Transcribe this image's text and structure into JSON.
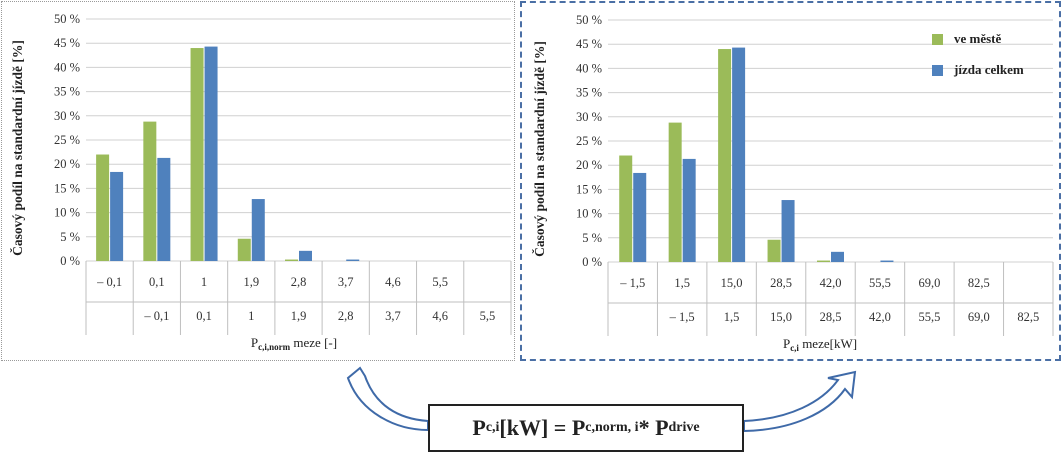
{
  "colors": {
    "green": "#9bbb59",
    "blue": "#4f81bd",
    "grid": "#d0d0d0"
  },
  "chart_data": [
    {
      "type": "bar",
      "ylabel": "Časový podíl na standardní jízdě [%]",
      "xlabel_main": "P",
      "xlabel_sub": "c,i,norm",
      "xlabel_rest": " meze [-]",
      "ylim": [
        0,
        50
      ],
      "yticks": [
        "0 %",
        "5 %",
        "10 %",
        "15 %",
        "20 %",
        "25 %",
        "30 %",
        "35 %",
        "40 %",
        "45 %",
        "50 %"
      ],
      "categories_upper": [
        "– 0,1",
        "0,1",
        "1",
        "1,9",
        "2,8",
        "3,7",
        "4,6",
        "5,5",
        ""
      ],
      "categories_lower": [
        "",
        "– 0,1",
        "0,1",
        "1",
        "1,9",
        "2,8",
        "3,7",
        "4,6",
        "5,5"
      ],
      "series": [
        {
          "name": "ve městě",
          "color": "#9bbb59",
          "values": [
            22,
            28.8,
            44,
            4.6,
            0.3,
            0,
            0,
            0,
            0
          ]
        },
        {
          "name": "jízda celkem",
          "color": "#4f81bd",
          "values": [
            18.4,
            21.3,
            44.3,
            12.8,
            2.1,
            0.3,
            0,
            0,
            0
          ]
        }
      ],
      "legend": false
    },
    {
      "type": "bar",
      "ylabel": "Časový podíl na standardní jízdě [%]",
      "xlabel_main": "P",
      "xlabel_sub": "c,i",
      "xlabel_rest": " meze[kW]",
      "ylim": [
        0,
        50
      ],
      "yticks": [
        "0 %",
        "5 %",
        "10 %",
        "15 %",
        "20 %",
        "25 %",
        "30 %",
        "35 %",
        "40 %",
        "45 %",
        "50 %"
      ],
      "categories_upper": [
        "– 1,5",
        "1,5",
        "15,0",
        "28,5",
        "42,0",
        "55,5",
        "69,0",
        "82,5",
        ""
      ],
      "categories_lower": [
        "",
        "– 1,5",
        "1,5",
        "15,0",
        "28,5",
        "42,0",
        "55,5",
        "69,0",
        "82,5"
      ],
      "series": [
        {
          "name": "ve městě",
          "color": "#9bbb59",
          "values": [
            22,
            28.8,
            44,
            4.6,
            0.3,
            0,
            0,
            0,
            0
          ]
        },
        {
          "name": "jízda celkem",
          "color": "#4f81bd",
          "values": [
            18.4,
            21.3,
            44.3,
            12.8,
            2.1,
            0.3,
            0,
            0,
            0
          ]
        }
      ],
      "legend": true,
      "legend_position": "top-right"
    }
  ],
  "formula": {
    "p1": "P",
    "s1": "c,i",
    "mid": " [kW] = P",
    "s2": "c,norm, i",
    "star": " * P",
    "s3": "drive"
  }
}
